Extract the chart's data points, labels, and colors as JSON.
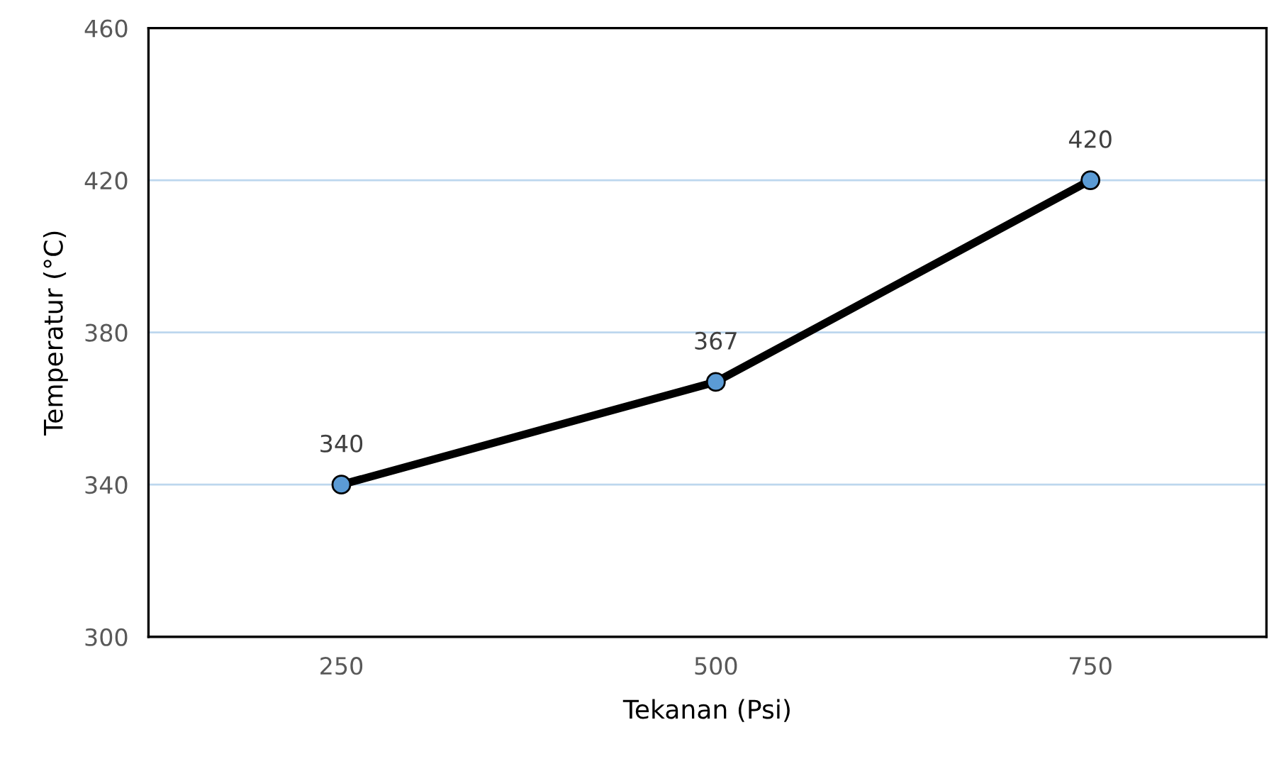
{
  "chart_data": {
    "type": "line",
    "xlabel": "Tekanan (Psi)",
    "ylabel": "Temperatur (°C)",
    "categories": [
      "250",
      "500",
      "750"
    ],
    "series": [
      {
        "color": "#000000",
        "values": [
          340,
          367,
          420
        ]
      }
    ],
    "ylim": [
      300,
      460
    ],
    "yticks": [
      300,
      340,
      380,
      420,
      460
    ],
    "grid": "y",
    "marker": "circle",
    "line_style": "solid",
    "data_labels": true
  }
}
